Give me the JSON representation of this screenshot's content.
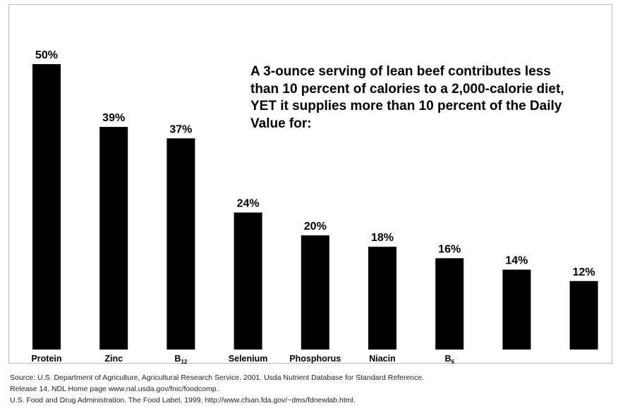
{
  "chart_data": {
    "type": "bar",
    "categories": [
      "Protein",
      "Zinc",
      "B12",
      "Selenium",
      "Phosphorus",
      "Niacin",
      "B6",
      "",
      ""
    ],
    "category_labels": [
      {
        "text": "Protein",
        "sub": ""
      },
      {
        "text": "Zinc",
        "sub": ""
      },
      {
        "text": "B",
        "sub": "12"
      },
      {
        "text": "Selenium",
        "sub": ""
      },
      {
        "text": "Phosphorus",
        "sub": ""
      },
      {
        "text": "Niacin",
        "sub": ""
      },
      {
        "text": "B",
        "sub": "6"
      },
      {
        "text": "",
        "sub": ""
      },
      {
        "text": "",
        "sub": ""
      }
    ],
    "values": [
      50,
      39,
      37,
      24,
      20,
      18,
      16,
      14,
      12
    ],
    "value_labels": [
      "50%",
      "39%",
      "37%",
      "24%",
      "20%",
      "18%",
      "16%",
      "14%",
      "12%"
    ],
    "ylim": [
      0,
      50
    ],
    "title": "",
    "xlabel": "",
    "ylabel": "",
    "grid": false,
    "bar_color": "#000000",
    "annotation": "A 3-ounce serving of lean beef contributes less than 10 percent of calories to a 2,000-calorie diet, YET it supplies more than 10 percent of the Daily Value for:"
  },
  "source": {
    "line1": "Source: U.S. Department of Agriculture, Agricultural Research Service. 2001. Usda Nutrient Database for Standard Reference.",
    "line2": "Release 14.  NDL Home page www.nal.usda.gov/fnic/foodcomp.",
    "line3": "U.S. Food and Drug Administration. The Food Label, 1999, http://www.cfsan.fda.gov/~dms/fdnewlab.html."
  }
}
